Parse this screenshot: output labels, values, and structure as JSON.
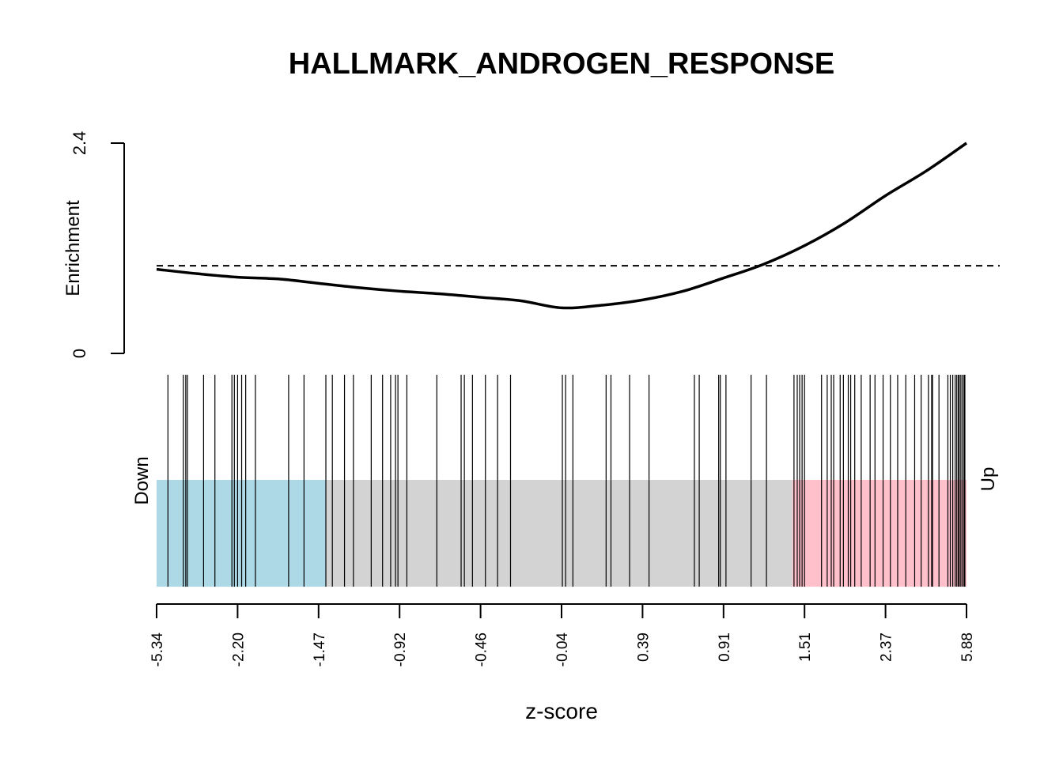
{
  "chart_data": {
    "type": "line",
    "title": "HALLMARK_ANDROGEN_RESPONSE",
    "xlabel": "z-score",
    "ylabel": "Enrichment",
    "ylim": [
      0,
      2.4
    ],
    "y_ticks": [
      "0",
      "2.4"
    ],
    "reference_line": 1.0,
    "x_tick_labels": [
      "-5.34",
      "-2.20",
      "-1.47",
      "-0.92",
      "-0.46",
      "-0.04",
      "0.39",
      "0.91",
      "1.51",
      "2.37",
      "5.88"
    ],
    "x_range_rank": [
      0,
      1
    ],
    "curve": {
      "x_rank": [
        0.0,
        0.05,
        0.1,
        0.15,
        0.2,
        0.25,
        0.3,
        0.35,
        0.4,
        0.45,
        0.5,
        0.55,
        0.6,
        0.65,
        0.7,
        0.75,
        0.8,
        0.85,
        0.9,
        0.95,
        1.0
      ],
      "y": [
        0.96,
        0.91,
        0.87,
        0.85,
        0.8,
        0.75,
        0.71,
        0.68,
        0.64,
        0.6,
        0.52,
        0.55,
        0.61,
        0.71,
        0.86,
        1.02,
        1.23,
        1.49,
        1.8,
        2.08,
        2.4
      ]
    },
    "regions": [
      {
        "name": "Down",
        "from_rank": 0.0,
        "to_rank": 0.209,
        "color": "#ADD8E6"
      },
      {
        "name": "",
        "from_rank": 0.209,
        "to_rank": 0.785,
        "color": "#D3D3D3"
      },
      {
        "name": "Up",
        "from_rank": 0.785,
        "to_rank": 1.0,
        "color": "#FFC0CB"
      }
    ],
    "side_labels": {
      "left": "Down",
      "right": "Up"
    },
    "gene_positions_rank": [
      0.014,
      0.033,
      0.036,
      0.038,
      0.058,
      0.072,
      0.093,
      0.096,
      0.1,
      0.105,
      0.11,
      0.122,
      0.163,
      0.182,
      0.209,
      0.217,
      0.232,
      0.243,
      0.265,
      0.279,
      0.289,
      0.295,
      0.298,
      0.309,
      0.346,
      0.376,
      0.38,
      0.39,
      0.406,
      0.421,
      0.437,
      0.501,
      0.505,
      0.514,
      0.555,
      0.561,
      0.584,
      0.608,
      0.664,
      0.67,
      0.694,
      0.696,
      0.703,
      0.734,
      0.753,
      0.787,
      0.791,
      0.794,
      0.797,
      0.8,
      0.821,
      0.828,
      0.833,
      0.836,
      0.844,
      0.848,
      0.854,
      0.857,
      0.862,
      0.87,
      0.881,
      0.887,
      0.897,
      0.906,
      0.915,
      0.925,
      0.936,
      0.944,
      0.953,
      0.957,
      0.958,
      0.966,
      0.977,
      0.98,
      0.983,
      0.986,
      0.988,
      0.99,
      0.991,
      0.993,
      0.995,
      0.997,
      0.998
    ]
  }
}
